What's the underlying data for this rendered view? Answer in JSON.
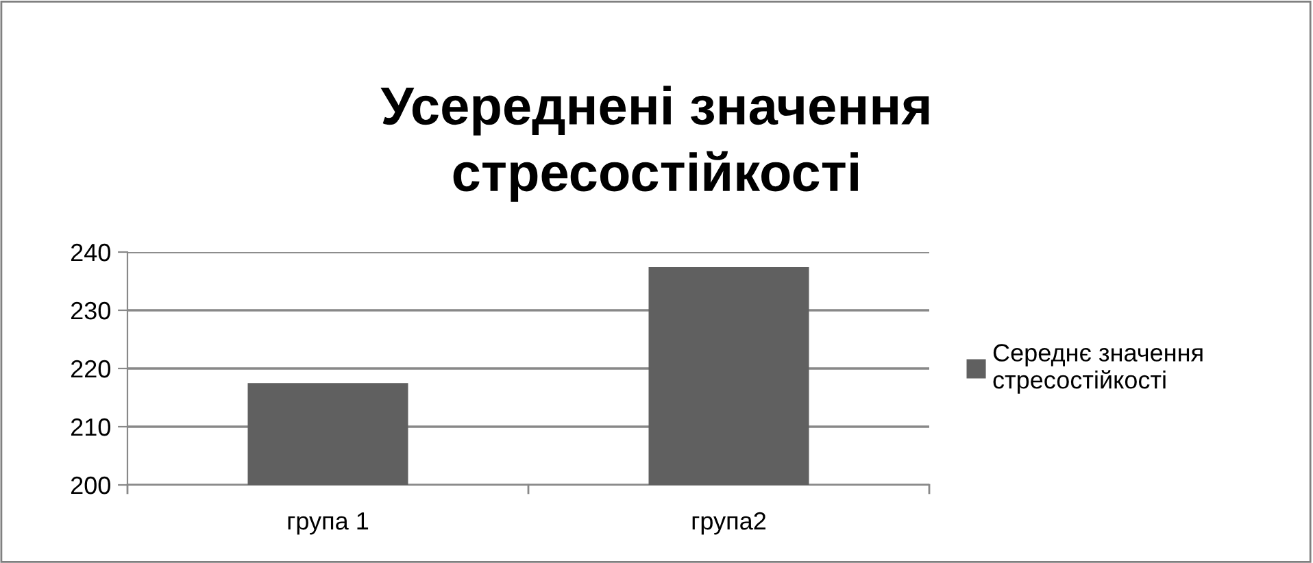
{
  "chart_data": {
    "type": "bar",
    "title": "Усереднені значення\nстресостійкості",
    "categories": [
      "група 1",
      "група2"
    ],
    "series": [
      {
        "name": "Середнє значення\nстресостійкості",
        "color": "#606060",
        "values": [
          217.5,
          237.4
        ]
      }
    ],
    "ylim": [
      200,
      240
    ],
    "yticks": [
      200,
      210,
      220,
      230,
      240
    ],
    "grid": "y",
    "legend": "right"
  }
}
